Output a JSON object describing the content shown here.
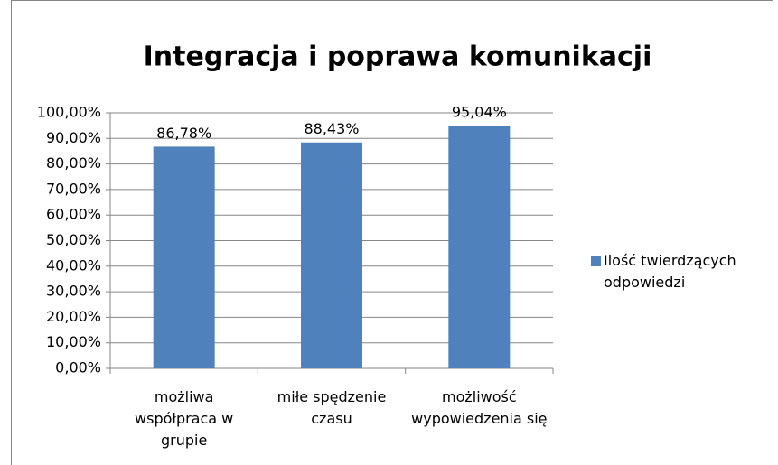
{
  "chart_data": {
    "type": "bar",
    "title": "Integracja i poprawa komunikacji",
    "categories": [
      "możliwa współpraca w grupie",
      "miłe spędzenie czasu",
      "możliwość wypowiedzenia się"
    ],
    "series": [
      {
        "name": "Ilość twierdzących odpowiedzi",
        "color": "#4f81bd",
        "values": [
          86.78,
          88.43,
          95.04
        ],
        "value_labels": [
          "86,78%",
          "88,43%",
          "95,04%"
        ]
      }
    ],
    "ylim": [
      0,
      100
    ],
    "yticks": [
      {
        "value": 0,
        "label": "0,00%"
      },
      {
        "value": 10,
        "label": "10,00%"
      },
      {
        "value": 20,
        "label": "20,00%"
      },
      {
        "value": 30,
        "label": "30,00%"
      },
      {
        "value": 40,
        "label": "40,00%"
      },
      {
        "value": 50,
        "label": "50,00%"
      },
      {
        "value": 60,
        "label": "60,00%"
      },
      {
        "value": 70,
        "label": "70,00%"
      },
      {
        "value": 80,
        "label": "80,00%"
      },
      {
        "value": 90,
        "label": "90,00%"
      },
      {
        "value": 100,
        "label": "100,00%"
      }
    ],
    "grid": true,
    "legend": "right"
  }
}
